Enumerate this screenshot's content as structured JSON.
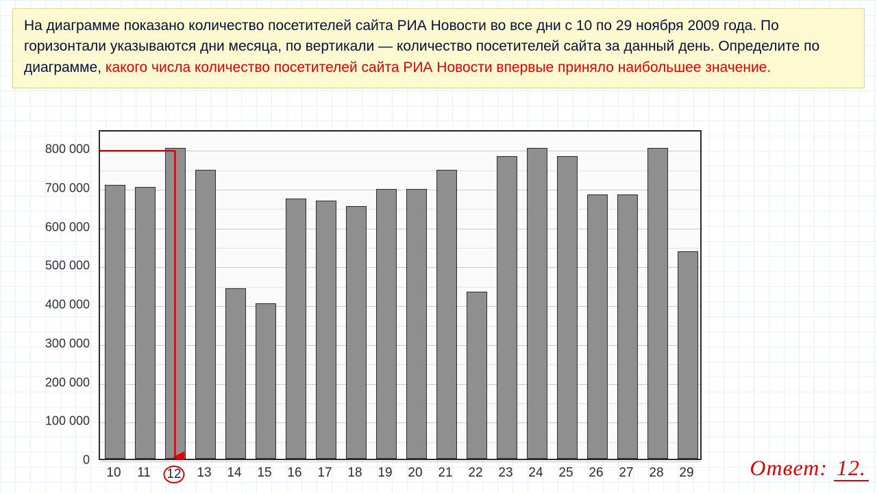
{
  "question": {
    "part1": "На диаграмме показано количество посетителей сайта РИА Новости во все дни с 10 по 29 ноября 2009 года. По горизонтали указываются дни месяца, по вертикали — количество посетителей сайта за данный день. Определите по диаграмме, ",
    "part2": "какого числа количество посетителей сайта РИА Новости впервые приняло наибольшее значение."
  },
  "chart": {
    "type": "bar",
    "categories": [
      "10",
      "11",
      "12",
      "13",
      "14",
      "15",
      "16",
      "17",
      "18",
      "19",
      "20",
      "21",
      "22",
      "23",
      "24",
      "25",
      "26",
      "27",
      "28",
      "29"
    ],
    "values": [
      705000,
      700000,
      800000,
      745000,
      440000,
      400000,
      670000,
      665000,
      650000,
      695000,
      695000,
      745000,
      430000,
      780000,
      800000,
      780000,
      680000,
      680000,
      800000,
      535000
    ],
    "ymax": 850000,
    "ytick_step": 100000,
    "ytick_labels": [
      "0",
      "100 000",
      "200 000",
      "300 000",
      "400 000",
      "500 000",
      "600 000",
      "700 000",
      "800 000"
    ],
    "bar_color": "#8f8f8f",
    "bar_border": "#2b2b2b",
    "grid_color": "#c8c8c8",
    "minor_grid_color": "#e0e0e0",
    "background_color": "#fbfbfb",
    "axis_fontsize": 18,
    "bar_width_ratio": 0.68,
    "highlight_index": 2,
    "annotation_color": "#e00000"
  },
  "answer": {
    "label": "Ответ:",
    "value": "12."
  }
}
